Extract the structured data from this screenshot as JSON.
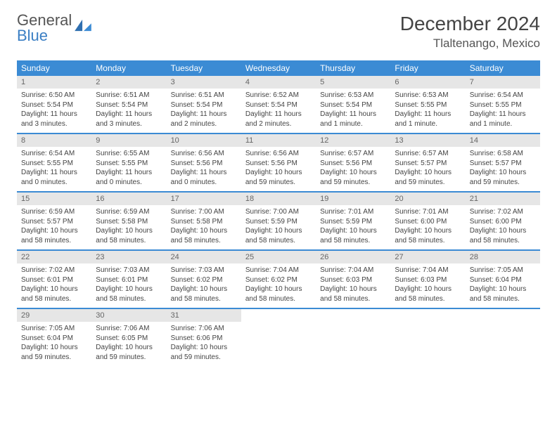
{
  "logo": {
    "line1": "General",
    "line2": "Blue"
  },
  "title": "December 2024",
  "location": "Tlaltenango, Mexico",
  "colors": {
    "header_bg": "#3b8bd4",
    "header_text": "#ffffff",
    "daynum_bg": "#e6e6e6",
    "daynum_text": "#666666",
    "body_text": "#444444",
    "rule": "#3b8bd4",
    "logo_gray": "#555555",
    "logo_blue": "#3b7fc4"
  },
  "dayNames": [
    "Sunday",
    "Monday",
    "Tuesday",
    "Wednesday",
    "Thursday",
    "Friday",
    "Saturday"
  ],
  "weeks": [
    [
      {
        "n": 1,
        "sunrise": "6:50 AM",
        "sunset": "5:54 PM",
        "daylight": "11 hours and 3 minutes."
      },
      {
        "n": 2,
        "sunrise": "6:51 AM",
        "sunset": "5:54 PM",
        "daylight": "11 hours and 3 minutes."
      },
      {
        "n": 3,
        "sunrise": "6:51 AM",
        "sunset": "5:54 PM",
        "daylight": "11 hours and 2 minutes."
      },
      {
        "n": 4,
        "sunrise": "6:52 AM",
        "sunset": "5:54 PM",
        "daylight": "11 hours and 2 minutes."
      },
      {
        "n": 5,
        "sunrise": "6:53 AM",
        "sunset": "5:54 PM",
        "daylight": "11 hours and 1 minute."
      },
      {
        "n": 6,
        "sunrise": "6:53 AM",
        "sunset": "5:55 PM",
        "daylight": "11 hours and 1 minute."
      },
      {
        "n": 7,
        "sunrise": "6:54 AM",
        "sunset": "5:55 PM",
        "daylight": "11 hours and 1 minute."
      }
    ],
    [
      {
        "n": 8,
        "sunrise": "6:54 AM",
        "sunset": "5:55 PM",
        "daylight": "11 hours and 0 minutes."
      },
      {
        "n": 9,
        "sunrise": "6:55 AM",
        "sunset": "5:55 PM",
        "daylight": "11 hours and 0 minutes."
      },
      {
        "n": 10,
        "sunrise": "6:56 AM",
        "sunset": "5:56 PM",
        "daylight": "11 hours and 0 minutes."
      },
      {
        "n": 11,
        "sunrise": "6:56 AM",
        "sunset": "5:56 PM",
        "daylight": "10 hours and 59 minutes."
      },
      {
        "n": 12,
        "sunrise": "6:57 AM",
        "sunset": "5:56 PM",
        "daylight": "10 hours and 59 minutes."
      },
      {
        "n": 13,
        "sunrise": "6:57 AM",
        "sunset": "5:57 PM",
        "daylight": "10 hours and 59 minutes."
      },
      {
        "n": 14,
        "sunrise": "6:58 AM",
        "sunset": "5:57 PM",
        "daylight": "10 hours and 59 minutes."
      }
    ],
    [
      {
        "n": 15,
        "sunrise": "6:59 AM",
        "sunset": "5:57 PM",
        "daylight": "10 hours and 58 minutes."
      },
      {
        "n": 16,
        "sunrise": "6:59 AM",
        "sunset": "5:58 PM",
        "daylight": "10 hours and 58 minutes."
      },
      {
        "n": 17,
        "sunrise": "7:00 AM",
        "sunset": "5:58 PM",
        "daylight": "10 hours and 58 minutes."
      },
      {
        "n": 18,
        "sunrise": "7:00 AM",
        "sunset": "5:59 PM",
        "daylight": "10 hours and 58 minutes."
      },
      {
        "n": 19,
        "sunrise": "7:01 AM",
        "sunset": "5:59 PM",
        "daylight": "10 hours and 58 minutes."
      },
      {
        "n": 20,
        "sunrise": "7:01 AM",
        "sunset": "6:00 PM",
        "daylight": "10 hours and 58 minutes."
      },
      {
        "n": 21,
        "sunrise": "7:02 AM",
        "sunset": "6:00 PM",
        "daylight": "10 hours and 58 minutes."
      }
    ],
    [
      {
        "n": 22,
        "sunrise": "7:02 AM",
        "sunset": "6:01 PM",
        "daylight": "10 hours and 58 minutes."
      },
      {
        "n": 23,
        "sunrise": "7:03 AM",
        "sunset": "6:01 PM",
        "daylight": "10 hours and 58 minutes."
      },
      {
        "n": 24,
        "sunrise": "7:03 AM",
        "sunset": "6:02 PM",
        "daylight": "10 hours and 58 minutes."
      },
      {
        "n": 25,
        "sunrise": "7:04 AM",
        "sunset": "6:02 PM",
        "daylight": "10 hours and 58 minutes."
      },
      {
        "n": 26,
        "sunrise": "7:04 AM",
        "sunset": "6:03 PM",
        "daylight": "10 hours and 58 minutes."
      },
      {
        "n": 27,
        "sunrise": "7:04 AM",
        "sunset": "6:03 PM",
        "daylight": "10 hours and 58 minutes."
      },
      {
        "n": 28,
        "sunrise": "7:05 AM",
        "sunset": "6:04 PM",
        "daylight": "10 hours and 58 minutes."
      }
    ],
    [
      {
        "n": 29,
        "sunrise": "7:05 AM",
        "sunset": "6:04 PM",
        "daylight": "10 hours and 59 minutes."
      },
      {
        "n": 30,
        "sunrise": "7:06 AM",
        "sunset": "6:05 PM",
        "daylight": "10 hours and 59 minutes."
      },
      {
        "n": 31,
        "sunrise": "7:06 AM",
        "sunset": "6:06 PM",
        "daylight": "10 hours and 59 minutes."
      },
      null,
      null,
      null,
      null
    ]
  ],
  "labels": {
    "sunrise": "Sunrise:",
    "sunset": "Sunset:",
    "daylight": "Daylight:"
  }
}
